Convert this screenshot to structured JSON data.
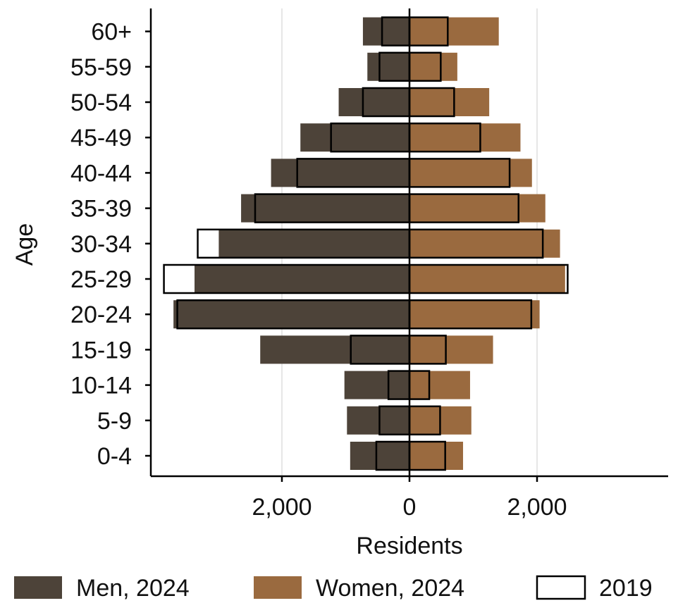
{
  "chart_data": {
    "type": "bar",
    "orientation": "horizontal",
    "title": "",
    "xlabel": "Residents",
    "ylabel": "Age",
    "categories": [
      "0-4",
      "5-9",
      "10-14",
      "15-19",
      "20-24",
      "25-29",
      "30-34",
      "35-39",
      "40-44",
      "45-49",
      "50-54",
      "55-59",
      "60+"
    ],
    "xlim": [
      -4050,
      4050
    ],
    "x_ticks": [
      {
        "value": -2000,
        "label": "2,000"
      },
      {
        "value": 0,
        "label": "0"
      },
      {
        "value": 2000,
        "label": "2,000"
      }
    ],
    "grid": "vertical",
    "legend_position": "bottom",
    "series": [
      {
        "name": "Men, 2024",
        "side": "left",
        "color": "#4d4339",
        "style": "filled",
        "values": [
          930,
          980,
          1020,
          2340,
          3700,
          3370,
          2990,
          2640,
          2170,
          1710,
          1110,
          660,
          730
        ]
      },
      {
        "name": "Women, 2024",
        "side": "right",
        "color": "#9a6a3f",
        "style": "filled",
        "values": [
          840,
          970,
          950,
          1310,
          2040,
          2440,
          2360,
          2130,
          1920,
          1740,
          1250,
          750,
          1400
        ]
      },
      {
        "name": "2019",
        "side": "both",
        "color": "#000000",
        "style": "outline",
        "values_men": [
          520,
          470,
          330,
          920,
          3640,
          3850,
          3320,
          2420,
          1760,
          1230,
          730,
          470,
          430
        ],
        "values_women": [
          560,
          480,
          310,
          570,
          1910,
          2480,
          2090,
          1710,
          1570,
          1110,
          700,
          490,
          600
        ]
      }
    ]
  }
}
